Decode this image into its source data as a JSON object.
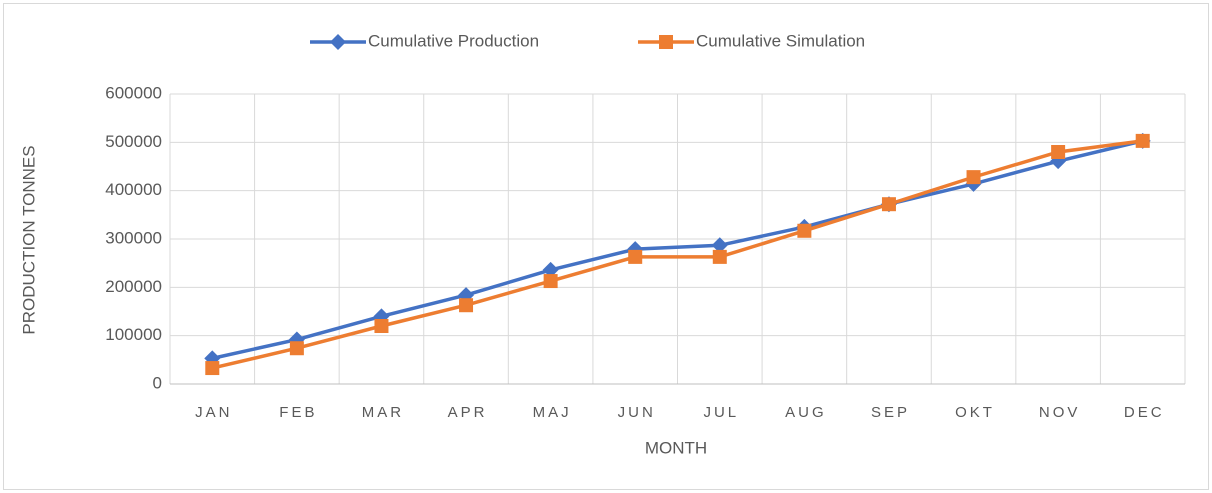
{
  "chart_data": {
    "type": "line",
    "categories": [
      "JAN",
      "FEB",
      "MAR",
      "APR",
      "MAJ",
      "JUN",
      "JUL",
      "AUG",
      "SEP",
      "OKT",
      "NOV",
      "DEC"
    ],
    "series": [
      {
        "name": "Cumulative Production",
        "color": "#4472c4",
        "marker": "diamond",
        "values": [
          53000,
          92000,
          140000,
          184000,
          236000,
          279000,
          287000,
          325000,
          372000,
          414000,
          461000,
          503000
        ]
      },
      {
        "name": "Cumulative Simulation",
        "color": "#ed7d31",
        "marker": "square",
        "values": [
          33000,
          74000,
          120000,
          163000,
          213000,
          263000,
          263000,
          317000,
          372000,
          428000,
          480000,
          503000
        ]
      }
    ],
    "x_label": "MONTH",
    "y_label": "PRODUCTION TONNES",
    "ylim": [
      0,
      600000
    ],
    "yticks": [
      0,
      100000,
      200000,
      300000,
      400000,
      500000,
      600000
    ],
    "grid": true,
    "legend": "top"
  }
}
